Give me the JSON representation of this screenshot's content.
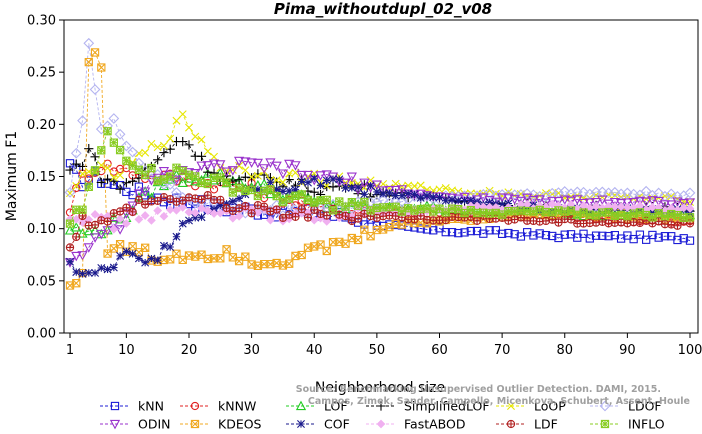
{
  "chart_data": {
    "type": "line",
    "title": "Pima_withoutdupl_02_v08",
    "xlabel": "Neighborhood size",
    "ylabel": "Maximum F1",
    "xlim": [
      1,
      100
    ],
    "ylim": [
      0,
      0.3
    ],
    "x_ticks": [
      1,
      10,
      20,
      30,
      40,
      50,
      60,
      70,
      80,
      90,
      100
    ],
    "y_ticks": [
      "0.00",
      "0.05",
      "0.10",
      "0.15",
      "0.20",
      "0.25",
      "0.30"
    ],
    "grid": false,
    "legend_position": "bottom",
    "watermark": [
      "Source: Benchmarking Unsupervised Outlier Detection. DAMI, 2015.",
      "Campos, Zimek, Sander, Campello, Micenkova, Schubert, Assent, Houle"
    ],
    "series": [
      {
        "name": "kNN",
        "color": "#1c1cd6",
        "marker": "square",
        "knots": [
          [
            1,
            0.158
          ],
          [
            3,
            0.145
          ],
          [
            5,
            0.15
          ],
          [
            8,
            0.142
          ],
          [
            12,
            0.135
          ],
          [
            16,
            0.128
          ],
          [
            20,
            0.126
          ],
          [
            25,
            0.12
          ],
          [
            30,
            0.118
          ],
          [
            35,
            0.116
          ],
          [
            40,
            0.114
          ],
          [
            45,
            0.112
          ],
          [
            50,
            0.105
          ],
          [
            55,
            0.1
          ],
          [
            60,
            0.098
          ],
          [
            65,
            0.097
          ],
          [
            70,
            0.096
          ],
          [
            75,
            0.094
          ],
          [
            80,
            0.093
          ],
          [
            90,
            0.092
          ],
          [
            100,
            0.091
          ]
        ]
      },
      {
        "name": "kNNW",
        "color": "#e02020",
        "marker": "circle",
        "knots": [
          [
            1,
            0.12
          ],
          [
            3,
            0.15
          ],
          [
            6,
            0.16
          ],
          [
            10,
            0.156
          ],
          [
            14,
            0.15
          ],
          [
            18,
            0.148
          ],
          [
            22,
            0.145
          ],
          [
            26,
            0.142
          ],
          [
            30,
            0.138
          ],
          [
            35,
            0.13
          ],
          [
            40,
            0.12
          ],
          [
            45,
            0.118
          ],
          [
            50,
            0.118
          ],
          [
            55,
            0.117
          ],
          [
            60,
            0.115
          ],
          [
            65,
            0.115
          ],
          [
            70,
            0.116
          ],
          [
            75,
            0.114
          ],
          [
            80,
            0.112
          ],
          [
            85,
            0.11
          ],
          [
            90,
            0.108
          ],
          [
            100,
            0.106
          ]
        ]
      },
      {
        "name": "LOF",
        "color": "#22cc22",
        "marker": "triangle-up",
        "knots": [
          [
            1,
            0.1
          ],
          [
            4,
            0.095
          ],
          [
            8,
            0.105
          ],
          [
            12,
            0.125
          ],
          [
            16,
            0.145
          ],
          [
            20,
            0.15
          ],
          [
            24,
            0.15
          ],
          [
            28,
            0.145
          ],
          [
            32,
            0.138
          ],
          [
            36,
            0.132
          ],
          [
            40,
            0.125
          ],
          [
            45,
            0.12
          ],
          [
            50,
            0.118
          ],
          [
            55,
            0.12
          ],
          [
            60,
            0.12
          ],
          [
            65,
            0.118
          ],
          [
            70,
            0.118
          ],
          [
            75,
            0.116
          ],
          [
            80,
            0.115
          ],
          [
            90,
            0.114
          ],
          [
            100,
            0.113
          ]
        ]
      },
      {
        "name": "SimplifiedLOF",
        "color": "#000000",
        "marker": "plus",
        "knots": [
          [
            1,
            0.155
          ],
          [
            3,
            0.165
          ],
          [
            4,
            0.178
          ],
          [
            6,
            0.15
          ],
          [
            9,
            0.14
          ],
          [
            12,
            0.15
          ],
          [
            15,
            0.165
          ],
          [
            18,
            0.185
          ],
          [
            20,
            0.182
          ],
          [
            22,
            0.165
          ],
          [
            25,
            0.15
          ],
          [
            28,
            0.145
          ],
          [
            32,
            0.148
          ],
          [
            36,
            0.145
          ],
          [
            40,
            0.138
          ],
          [
            45,
            0.14
          ],
          [
            50,
            0.135
          ],
          [
            55,
            0.132
          ],
          [
            60,
            0.128
          ],
          [
            65,
            0.125
          ],
          [
            70,
            0.124
          ],
          [
            75,
            0.122
          ],
          [
            80,
            0.12
          ],
          [
            85,
            0.12
          ],
          [
            90,
            0.12
          ],
          [
            100,
            0.118
          ]
        ]
      },
      {
        "name": "LoOP",
        "color": "#e6e600",
        "marker": "cross",
        "knots": [
          [
            1,
            0.13
          ],
          [
            4,
            0.16
          ],
          [
            8,
            0.15
          ],
          [
            12,
            0.168
          ],
          [
            16,
            0.185
          ],
          [
            19,
            0.205
          ],
          [
            22,
            0.185
          ],
          [
            25,
            0.16
          ],
          [
            30,
            0.155
          ],
          [
            35,
            0.15
          ],
          [
            40,
            0.148
          ],
          [
            45,
            0.145
          ],
          [
            50,
            0.142
          ],
          [
            55,
            0.14
          ],
          [
            60,
            0.138
          ],
          [
            65,
            0.135
          ],
          [
            70,
            0.134
          ],
          [
            75,
            0.132
          ],
          [
            80,
            0.132
          ],
          [
            90,
            0.13
          ],
          [
            100,
            0.128
          ]
        ]
      },
      {
        "name": "LDOF",
        "color": "#b4b4f0",
        "marker": "diamond",
        "knots": [
          [
            1,
            0.14
          ],
          [
            3,
            0.205
          ],
          [
            4,
            0.275
          ],
          [
            6,
            0.19
          ],
          [
            8,
            0.21
          ],
          [
            10,
            0.18
          ],
          [
            14,
            0.15
          ],
          [
            18,
            0.135
          ],
          [
            22,
            0.125
          ],
          [
            26,
            0.12
          ],
          [
            30,
            0.118
          ],
          [
            35,
            0.118
          ],
          [
            40,
            0.12
          ],
          [
            45,
            0.122
          ],
          [
            50,
            0.125
          ],
          [
            55,
            0.128
          ],
          [
            60,
            0.13
          ],
          [
            65,
            0.132
          ],
          [
            70,
            0.133
          ],
          [
            75,
            0.133
          ],
          [
            80,
            0.134
          ],
          [
            85,
            0.135
          ],
          [
            90,
            0.134
          ],
          [
            100,
            0.133
          ]
        ]
      },
      {
        "name": "ODIN",
        "color": "#9932cc",
        "marker": "triangle-down",
        "knots": [
          [
            1,
            0.07
          ],
          [
            3,
            0.08
          ],
          [
            6,
            0.09
          ],
          [
            10,
            0.11
          ],
          [
            13,
            0.14
          ],
          [
            16,
            0.15
          ],
          [
            20,
            0.155
          ],
          [
            25,
            0.158
          ],
          [
            30,
            0.16
          ],
          [
            35,
            0.158
          ],
          [
            40,
            0.15
          ],
          [
            45,
            0.145
          ],
          [
            50,
            0.14
          ],
          [
            55,
            0.135
          ],
          [
            60,
            0.13
          ],
          [
            65,
            0.128
          ],
          [
            70,
            0.128
          ],
          [
            75,
            0.127
          ],
          [
            80,
            0.127
          ],
          [
            90,
            0.126
          ],
          [
            100,
            0.125
          ]
        ]
      },
      {
        "name": "KDEOS",
        "color": "#f0a820",
        "marker": "square-x",
        "knots": [
          [
            1,
            0.045
          ],
          [
            3,
            0.055
          ],
          [
            4,
            0.265
          ],
          [
            5,
            0.272
          ],
          [
            6,
            0.25
          ],
          [
            7,
            0.08
          ],
          [
            9,
            0.08
          ],
          [
            12,
            0.08
          ],
          [
            15,
            0.07
          ],
          [
            18,
            0.075
          ],
          [
            22,
            0.075
          ],
          [
            26,
            0.078
          ],
          [
            30,
            0.07
          ],
          [
            34,
            0.068
          ],
          [
            38,
            0.075
          ],
          [
            42,
            0.082
          ],
          [
            46,
            0.088
          ],
          [
            50,
            0.1
          ],
          [
            55,
            0.105
          ],
          [
            60,
            0.108
          ],
          [
            65,
            0.11
          ],
          [
            70,
            0.112
          ],
          [
            75,
            0.114
          ],
          [
            80,
            0.115
          ],
          [
            90,
            0.112
          ],
          [
            100,
            0.11
          ]
        ]
      },
      {
        "name": "COF",
        "color": "#1a1a8c",
        "marker": "asterisk",
        "knots": [
          [
            1,
            0.065
          ],
          [
            4,
            0.055
          ],
          [
            7,
            0.06
          ],
          [
            10,
            0.075
          ],
          [
            13,
            0.065
          ],
          [
            16,
            0.08
          ],
          [
            19,
            0.105
          ],
          [
            22,
            0.115
          ],
          [
            25,
            0.125
          ],
          [
            30,
            0.138
          ],
          [
            33,
            0.142
          ],
          [
            36,
            0.14
          ],
          [
            40,
            0.148
          ],
          [
            45,
            0.14
          ],
          [
            50,
            0.135
          ],
          [
            55,
            0.133
          ],
          [
            60,
            0.128
          ],
          [
            65,
            0.125
          ],
          [
            70,
            0.122
          ],
          [
            75,
            0.12
          ],
          [
            80,
            0.118
          ],
          [
            90,
            0.118
          ],
          [
            100,
            0.117
          ]
        ]
      },
      {
        "name": "FastABOD",
        "color": "#f0b0f0",
        "marker": "diamond-filled",
        "knots": [
          [
            1,
            0.115
          ],
          [
            4,
            0.11
          ],
          [
            8,
            0.105
          ],
          [
            12,
            0.112
          ],
          [
            16,
            0.115
          ],
          [
            20,
            0.116
          ],
          [
            25,
            0.115
          ],
          [
            30,
            0.114
          ],
          [
            35,
            0.112
          ],
          [
            40,
            0.112
          ],
          [
            45,
            0.114
          ],
          [
            50,
            0.115
          ],
          [
            55,
            0.116
          ],
          [
            60,
            0.118
          ],
          [
            65,
            0.12
          ],
          [
            70,
            0.12
          ],
          [
            75,
            0.121
          ],
          [
            80,
            0.122
          ],
          [
            90,
            0.12
          ],
          [
            100,
            0.118
          ]
        ]
      },
      {
        "name": "LDF",
        "color": "#b02020",
        "marker": "circle-plus",
        "knots": [
          [
            1,
            0.085
          ],
          [
            3,
            0.11
          ],
          [
            6,
            0.105
          ],
          [
            9,
            0.115
          ],
          [
            12,
            0.125
          ],
          [
            16,
            0.128
          ],
          [
            20,
            0.13
          ],
          [
            25,
            0.125
          ],
          [
            30,
            0.118
          ],
          [
            35,
            0.115
          ],
          [
            40,
            0.114
          ],
          [
            45,
            0.113
          ],
          [
            50,
            0.112
          ],
          [
            55,
            0.111
          ],
          [
            60,
            0.11
          ],
          [
            65,
            0.11
          ],
          [
            70,
            0.11
          ],
          [
            75,
            0.108
          ],
          [
            80,
            0.107
          ],
          [
            90,
            0.106
          ],
          [
            100,
            0.105
          ]
        ]
      },
      {
        "name": "INFLO",
        "color": "#88cc22",
        "marker": "square-star",
        "knots": [
          [
            1,
            0.105
          ],
          [
            3,
            0.12
          ],
          [
            5,
            0.155
          ],
          [
            7,
            0.19
          ],
          [
            9,
            0.175
          ],
          [
            12,
            0.16
          ],
          [
            15,
            0.15
          ],
          [
            18,
            0.155
          ],
          [
            22,
            0.148
          ],
          [
            26,
            0.142
          ],
          [
            30,
            0.136
          ],
          [
            35,
            0.13
          ],
          [
            40,
            0.125
          ],
          [
            45,
            0.122
          ],
          [
            50,
            0.12
          ],
          [
            55,
            0.118
          ],
          [
            60,
            0.118
          ],
          [
            65,
            0.117
          ],
          [
            70,
            0.116
          ],
          [
            75,
            0.116
          ],
          [
            80,
            0.115
          ],
          [
            90,
            0.114
          ],
          [
            100,
            0.112
          ]
        ]
      }
    ]
  }
}
